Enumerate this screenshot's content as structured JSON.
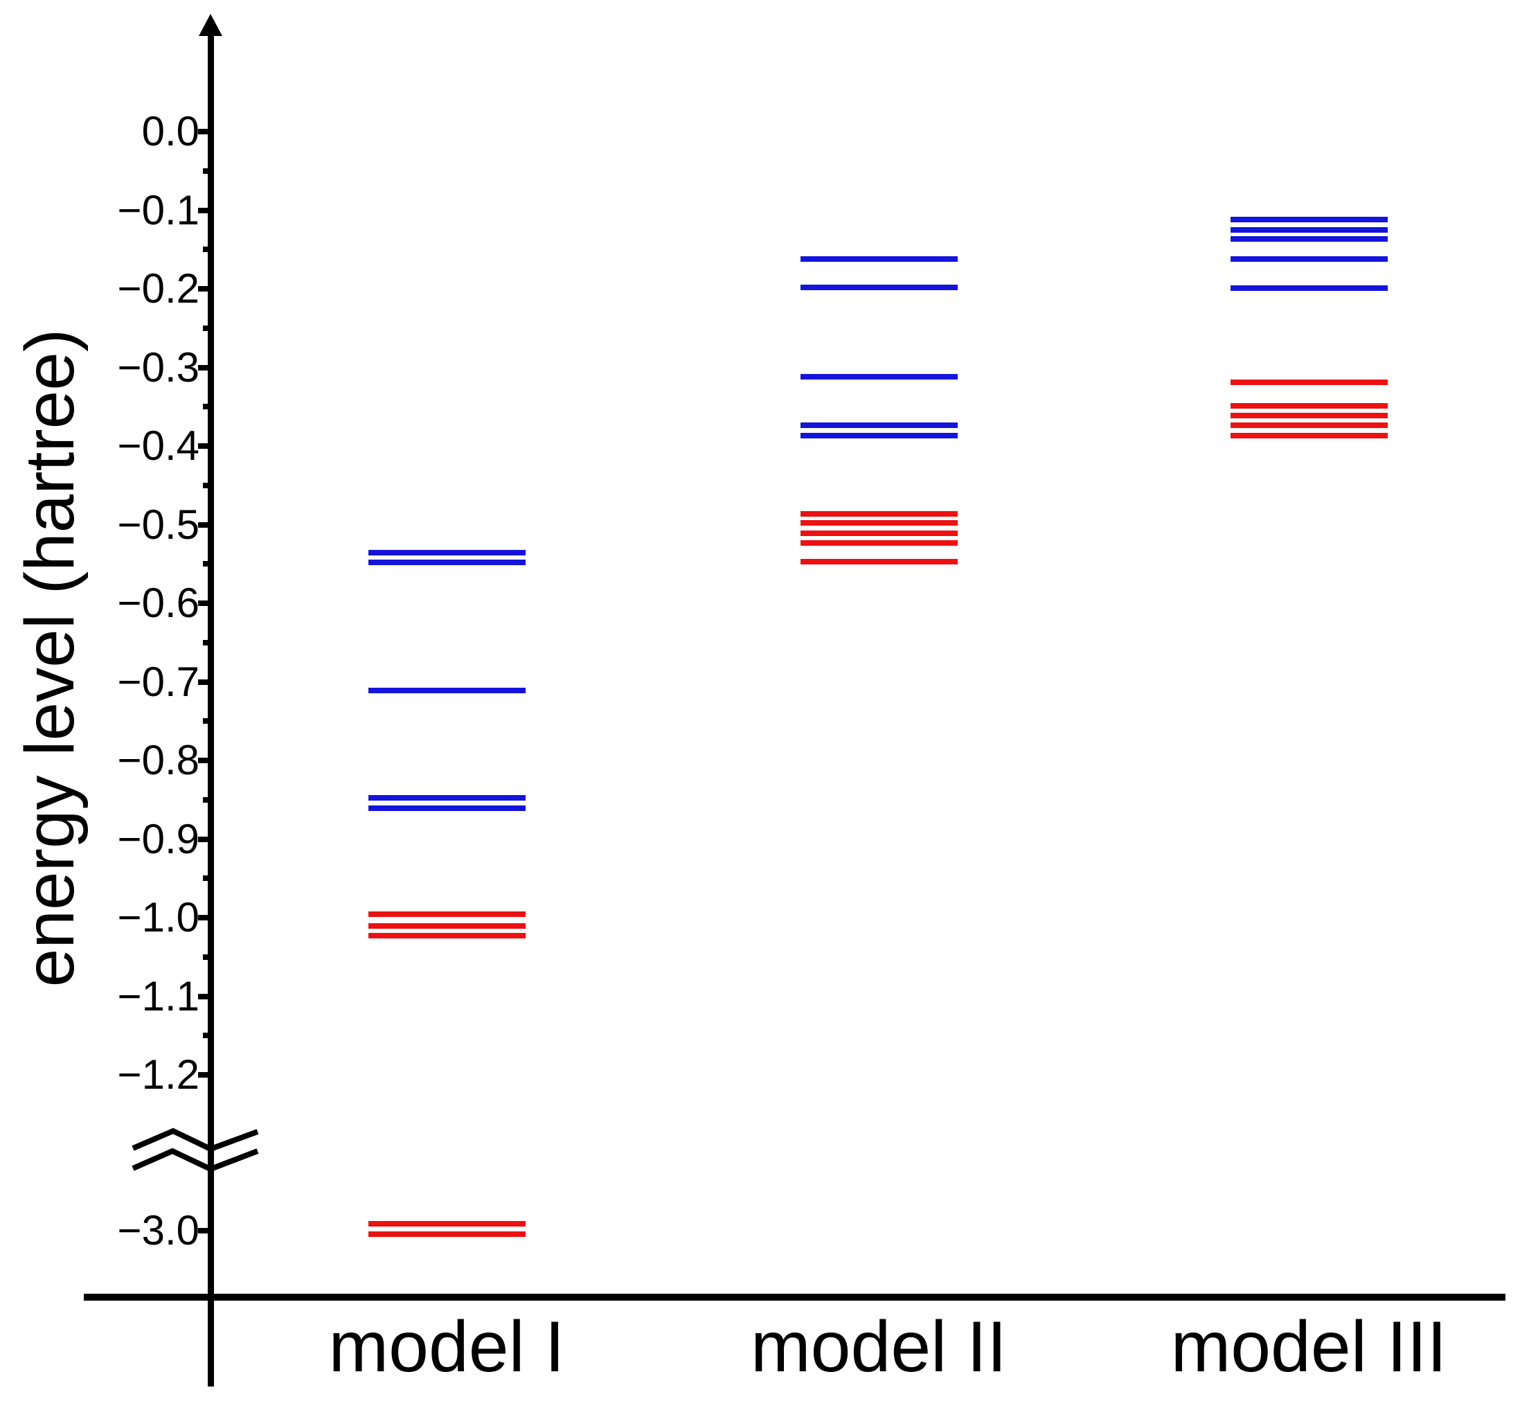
{
  "figure": {
    "background_color": "#ffffff",
    "axis_color": "#000000",
    "level_colors": {
      "blue": "#1414dd",
      "red": "#ee1111"
    },
    "y_axis": {
      "title": "energy level (hartree)",
      "has_axis_break": true,
      "ticks": [
        {
          "value": 0.0,
          "label": "0.0"
        },
        {
          "value": -0.1,
          "label": "−0.1"
        },
        {
          "value": -0.2,
          "label": "−0.2"
        },
        {
          "value": -0.3,
          "label": "−0.3"
        },
        {
          "value": -0.4,
          "label": "−0.4"
        },
        {
          "value": -0.5,
          "label": "−0.5"
        },
        {
          "value": -0.6,
          "label": "−0.6"
        },
        {
          "value": -0.7,
          "label": "−0.7"
        },
        {
          "value": -0.8,
          "label": "−0.8"
        },
        {
          "value": -0.9,
          "label": "−0.9"
        },
        {
          "value": -1.0,
          "label": "−1.0"
        },
        {
          "value": -1.1,
          "label": "−1.1"
        },
        {
          "value": -1.2,
          "label": "−1.2"
        },
        {
          "value": -3.0,
          "label": "−3.0"
        }
      ],
      "minor_tick_values": [
        -0.05,
        -0.15,
        -0.25,
        -0.35,
        -0.45,
        -0.55,
        -0.65,
        -0.75,
        -0.85,
        -0.95,
        -1.05,
        -1.15
      ]
    },
    "x_axis": {
      "categories": [
        "model I",
        "model II",
        "model III"
      ]
    }
  },
  "chart_data": {
    "type": "scatter",
    "subtype": "energy-level-diagram",
    "title": "",
    "xlabel": "",
    "ylabel": "energy level (hartree)",
    "y_unit": "hartree",
    "categories": [
      "model I",
      "model II",
      "model III"
    ],
    "y_axis_major_ticks": [
      0.0,
      -0.1,
      -0.2,
      -0.3,
      -0.4,
      -0.5,
      -0.6,
      -0.7,
      -0.8,
      -0.9,
      -1.0,
      -1.1,
      -1.2,
      -3.0
    ],
    "y_axis_minor_tick_step": 0.05,
    "axis_break_between": [
      -1.25,
      -2.95
    ],
    "grid": false,
    "legend": false,
    "marker": "horizontal-line",
    "series": [
      {
        "name": "model I",
        "levels": [
          {
            "energy": -0.536,
            "color": "blue"
          },
          {
            "energy": -0.548,
            "color": "blue"
          },
          {
            "energy": -0.711,
            "color": "blue"
          },
          {
            "energy": -0.848,
            "color": "blue"
          },
          {
            "energy": -0.861,
            "color": "blue"
          },
          {
            "energy": -0.996,
            "color": "red"
          },
          {
            "energy": -1.011,
            "color": "red"
          },
          {
            "energy": -1.023,
            "color": "red"
          },
          {
            "energy": -2.991,
            "color": "red"
          },
          {
            "energy": -3.004,
            "color": "red"
          }
        ]
      },
      {
        "name": "model II",
        "levels": [
          {
            "energy": -0.162,
            "color": "blue"
          },
          {
            "energy": -0.198,
            "color": "blue"
          },
          {
            "energy": -0.312,
            "color": "blue"
          },
          {
            "energy": -0.374,
            "color": "blue"
          },
          {
            "energy": -0.387,
            "color": "blue"
          },
          {
            "energy": -0.486,
            "color": "red"
          },
          {
            "energy": -0.498,
            "color": "red"
          },
          {
            "energy": -0.511,
            "color": "red"
          },
          {
            "energy": -0.523,
            "color": "red"
          },
          {
            "energy": -0.547,
            "color": "red"
          }
        ]
      },
      {
        "name": "model III",
        "levels": [
          {
            "energy": -0.112,
            "color": "blue"
          },
          {
            "energy": -0.125,
            "color": "blue"
          },
          {
            "energy": -0.137,
            "color": "blue"
          },
          {
            "energy": -0.162,
            "color": "blue"
          },
          {
            "energy": -0.199,
            "color": "blue"
          },
          {
            "energy": -0.319,
            "color": "red"
          },
          {
            "energy": -0.349,
            "color": "red"
          },
          {
            "energy": -0.361,
            "color": "red"
          },
          {
            "energy": -0.374,
            "color": "red"
          },
          {
            "energy": -0.387,
            "color": "red"
          }
        ]
      }
    ]
  }
}
